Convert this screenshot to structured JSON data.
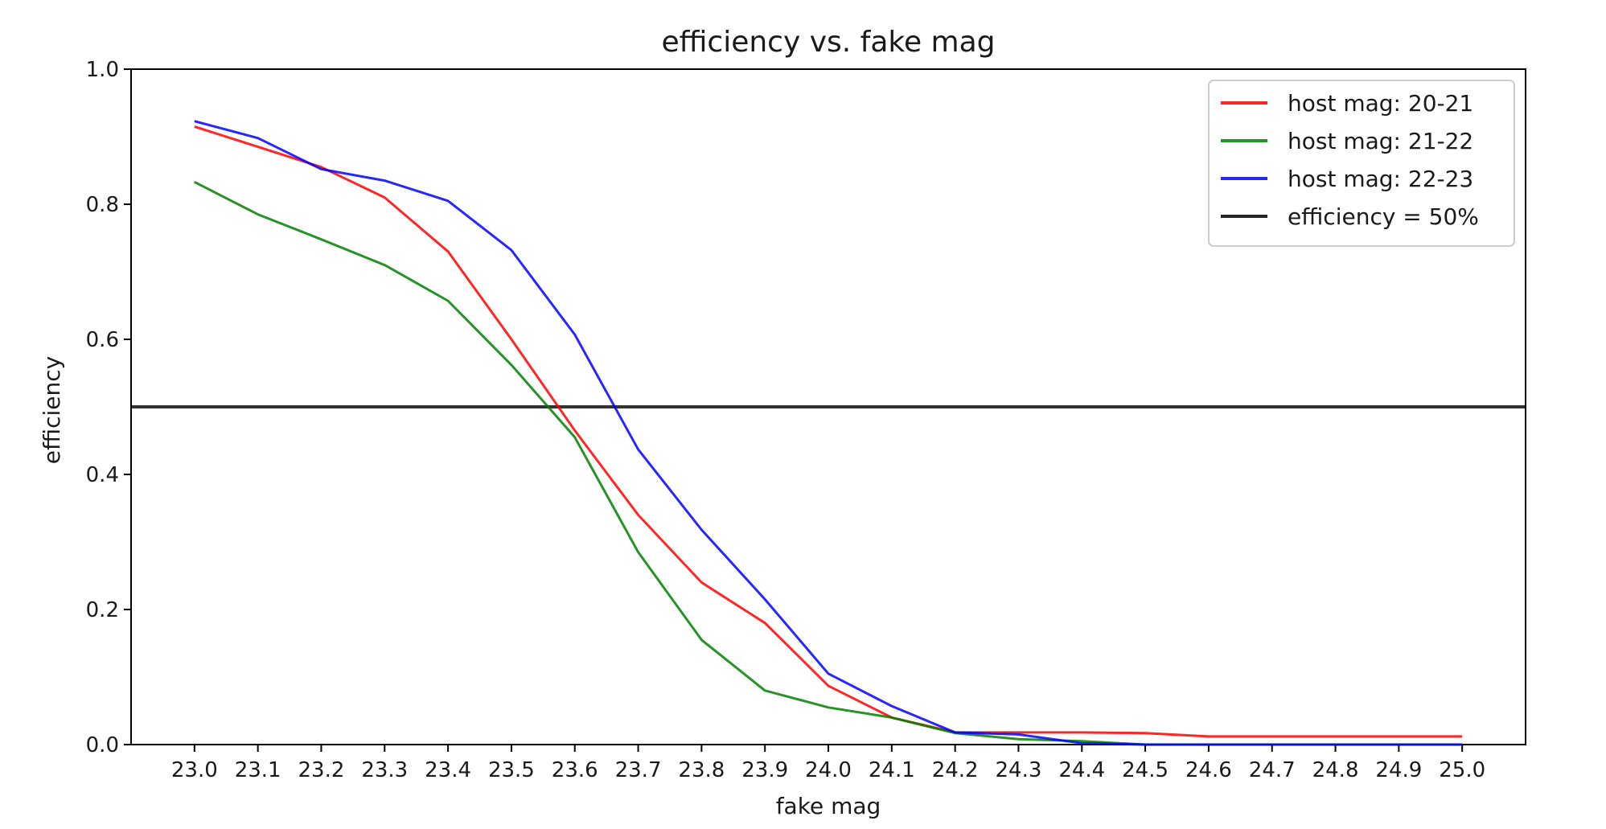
{
  "chart_data": {
    "type": "line",
    "title": "efficiency vs. fake mag",
    "xlabel": "fake mag",
    "ylabel": "efficiency",
    "xlim": [
      22.9,
      25.1
    ],
    "ylim": [
      0.0,
      1.0
    ],
    "x_ticks": [
      "23.0",
      "23.1",
      "23.2",
      "23.3",
      "23.4",
      "23.5",
      "23.6",
      "23.7",
      "23.8",
      "23.9",
      "24.0",
      "24.1",
      "24.2",
      "24.3",
      "24.4",
      "24.5",
      "24.6",
      "24.7",
      "24.8",
      "24.9",
      "25.0"
    ],
    "y_ticks": [
      "0.0",
      "0.2",
      "0.4",
      "0.6",
      "0.8",
      "1.0"
    ],
    "x": [
      23.0,
      23.1,
      23.2,
      23.3,
      23.4,
      23.5,
      23.6,
      23.7,
      23.8,
      23.9,
      24.0,
      24.1,
      24.2,
      24.3,
      24.4,
      24.5,
      24.6,
      24.7,
      24.8,
      24.9,
      25.0
    ],
    "series": [
      {
        "name": "host mag: 20-21",
        "color": "#ff0000",
        "values": [
          0.915,
          0.885,
          0.855,
          0.81,
          0.73,
          0.6,
          0.465,
          0.34,
          0.24,
          0.18,
          0.087,
          0.04,
          0.018,
          0.018,
          0.018,
          0.017,
          0.012,
          0.012,
          0.012,
          0.012,
          0.012
        ]
      },
      {
        "name": "host mag: 21-22",
        "color": "#008000",
        "values": [
          0.833,
          0.785,
          0.748,
          0.71,
          0.657,
          0.562,
          0.455,
          0.285,
          0.155,
          0.08,
          0.055,
          0.04,
          0.017,
          0.008,
          0.005,
          0.0,
          0.0,
          0.0,
          0.0,
          0.0,
          0.0
        ]
      },
      {
        "name": "host mag: 22-23",
        "color": "#0000ff",
        "values": [
          0.923,
          0.898,
          0.852,
          0.835,
          0.805,
          0.732,
          0.607,
          0.437,
          0.318,
          0.215,
          0.105,
          0.057,
          0.018,
          0.015,
          0.002,
          0.0,
          0.0,
          0.0,
          0.0,
          0.0,
          0.0
        ]
      }
    ],
    "hlines": [
      {
        "name": "efficiency = 50%",
        "color": "#000000",
        "y": 0.5
      }
    ],
    "legend_position": "top-right",
    "grid": false
  }
}
